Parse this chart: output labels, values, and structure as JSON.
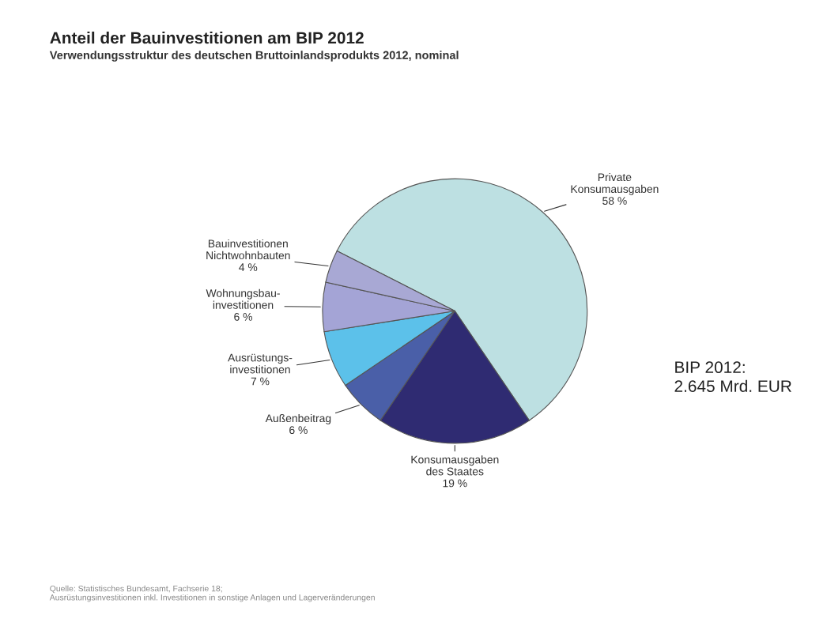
{
  "chart_data": {
    "type": "pie",
    "title": "Anteil der Bauinvestitionen am BIP 2012",
    "subtitle": "Verwendungsstruktur des deutschen Bruttoinlandsprodukts 2012, nominal",
    "categories": [
      "Private\nKonsumausgaben",
      "Konsumausgaben\ndes Staates",
      "Außenbeitrag",
      "Ausrüstungs-\ninvestitionen",
      "Wohnungsbau-\ninvestitionen",
      "Bauinvestitionen\nNichtwohnbauten"
    ],
    "values": [
      58,
      19,
      6,
      7,
      6,
      4
    ],
    "colors": [
      "#bde0e2",
      "#2f2b72",
      "#4a5fa8",
      "#5cc1ea",
      "#a4a4d6",
      "#a8a8d4"
    ],
    "value_labels": [
      "58 %",
      "19 %",
      "6 %",
      "7 %",
      "6 %",
      "4 %"
    ],
    "annotations": [
      "BIP 2012:\n2.645 Mrd. EUR",
      "Quelle: Statistisches Bundesamt, Fachserie 18;\nAusrüstungsinvestitionen inkl. Investitionen in sonstige Anlagen und Lagerveränderungen"
    ],
    "legend": false
  }
}
